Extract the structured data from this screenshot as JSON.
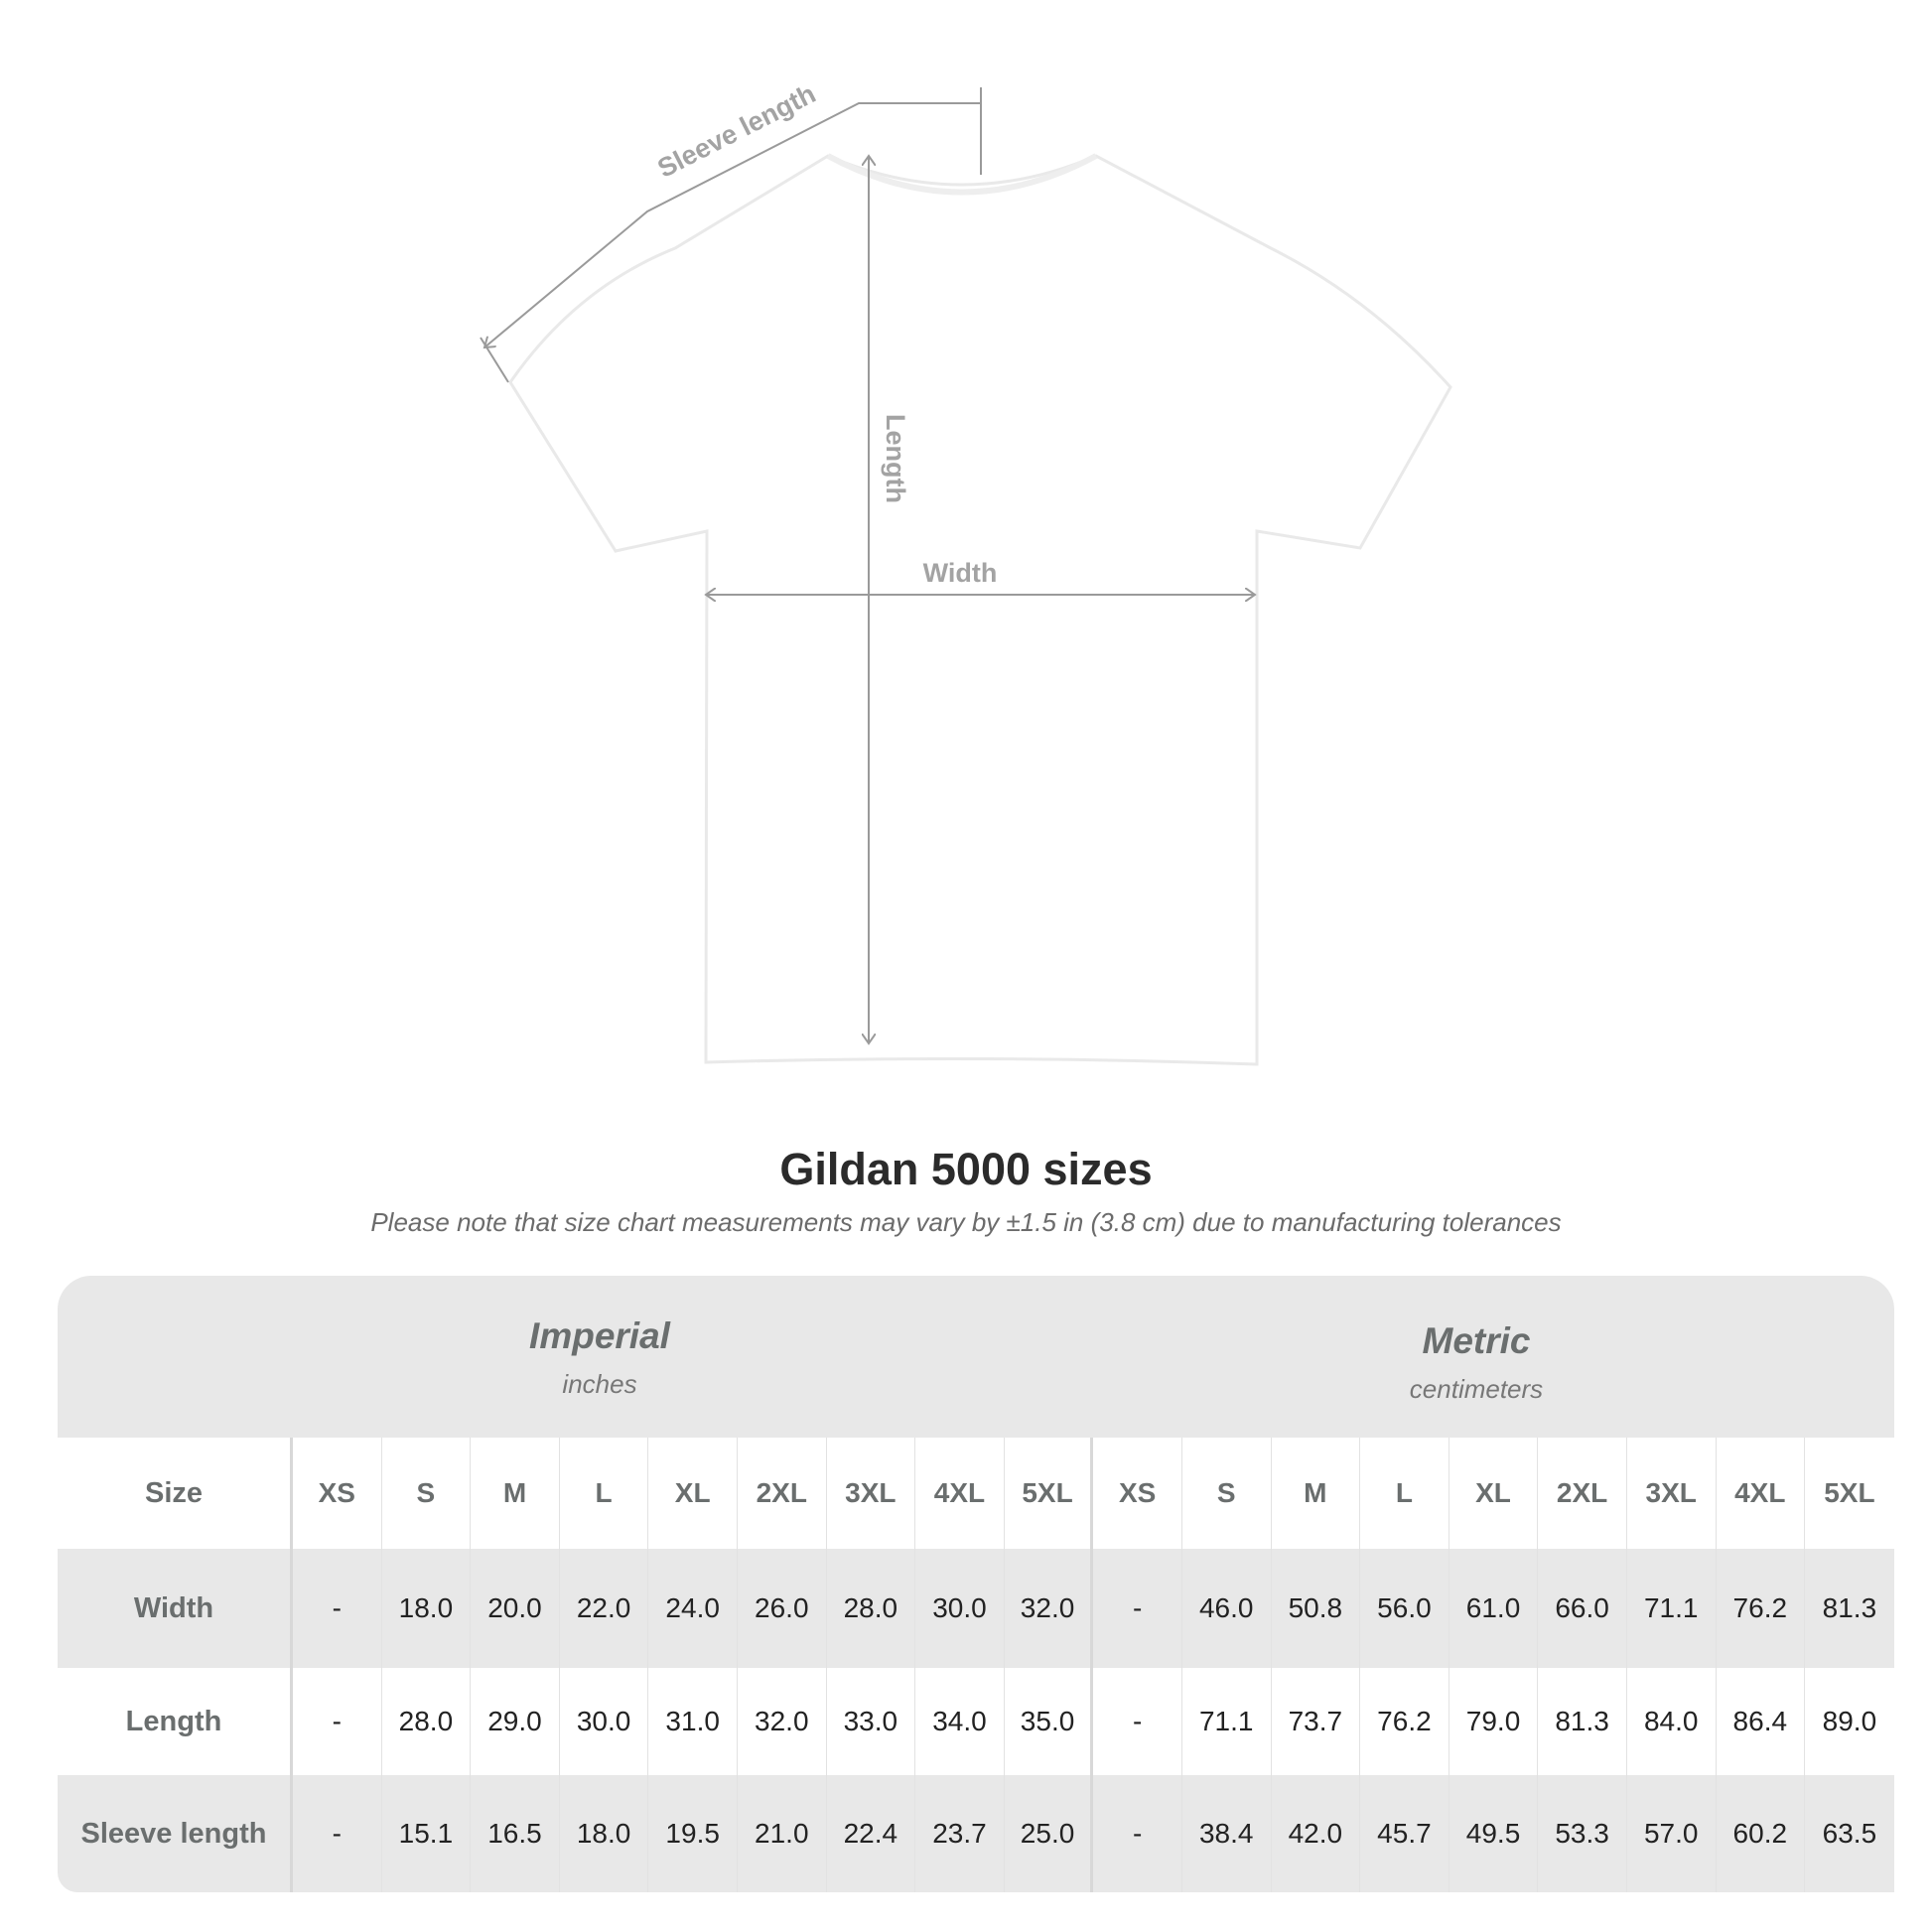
{
  "diagram": {
    "labels": {
      "sleeve": "Sleeve length",
      "length": "Length",
      "width": "Width"
    },
    "line_color": "#9a9a9a"
  },
  "title": "Gildan 5000 sizes",
  "subtitle": "Please note that size chart measurements may vary by ±1.5 in (3.8 cm) due to manufacturing tolerances",
  "table": {
    "imperial": {
      "name": "Imperial",
      "unit": "inches"
    },
    "metric": {
      "name": "Metric",
      "unit": "centimeters"
    },
    "size_label": "Size",
    "sizes": [
      "XS",
      "S",
      "M",
      "L",
      "XL",
      "2XL",
      "3XL",
      "4XL",
      "5XL"
    ],
    "rows": [
      {
        "label": "Width",
        "imperial": [
          "-",
          "18.0",
          "20.0",
          "22.0",
          "24.0",
          "26.0",
          "28.0",
          "30.0",
          "32.0"
        ],
        "metric": [
          "-",
          "46.0",
          "50.8",
          "56.0",
          "61.0",
          "66.0",
          "71.1",
          "76.2",
          "81.3"
        ]
      },
      {
        "label": "Length",
        "imperial": [
          "-",
          "28.0",
          "29.0",
          "30.0",
          "31.0",
          "32.0",
          "33.0",
          "34.0",
          "35.0"
        ],
        "metric": [
          "-",
          "71.1",
          "73.7",
          "76.2",
          "79.0",
          "81.3",
          "84.0",
          "86.4",
          "89.0"
        ]
      },
      {
        "label": "Sleeve length",
        "imperial": [
          "-",
          "15.1",
          "16.5",
          "18.0",
          "19.5",
          "21.0",
          "22.4",
          "23.7",
          "25.0"
        ],
        "metric": [
          "-",
          "38.4",
          "42.0",
          "45.7",
          "49.5",
          "53.3",
          "57.0",
          "60.2",
          "63.5"
        ]
      }
    ],
    "band_color": "#e8e8e8"
  }
}
